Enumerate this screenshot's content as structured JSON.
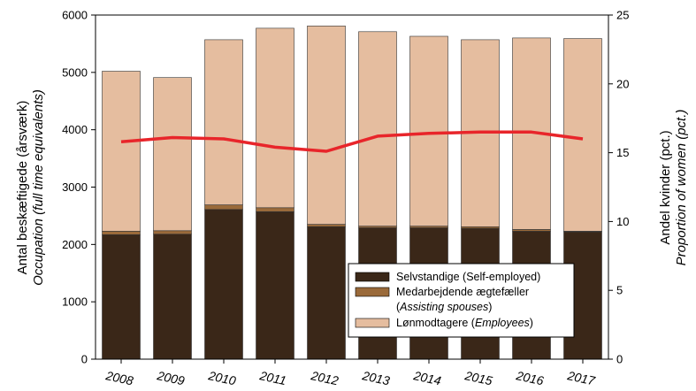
{
  "chart_data": {
    "type": "bar",
    "stacked": true,
    "categories": [
      "2008",
      "2009",
      "2010",
      "2011",
      "2012",
      "2013",
      "2014",
      "2015",
      "2016",
      "2017"
    ],
    "series": [
      {
        "name": "Selvstandige (Self-employed)",
        "color": "#3a2718",
        "values": [
          2170,
          2180,
          2610,
          2570,
          2310,
          2290,
          2290,
          2280,
          2230,
          2220
        ]
      },
      {
        "name": "Medarbejdende ægtefæller (Assisting spouses)",
        "color": "#9a6a3a",
        "values": [
          60,
          60,
          80,
          70,
          40,
          30,
          30,
          30,
          30,
          10
        ]
      },
      {
        "name": "Lønmodtagere (Employees)",
        "color": "#e5bd9f",
        "values": [
          2790,
          2670,
          2880,
          3130,
          3460,
          3390,
          3310,
          3260,
          3340,
          3360
        ]
      }
    ],
    "line_series": {
      "name": "Andel kvinder",
      "color": "#e8252a",
      "axis": "right",
      "values": [
        15.8,
        16.1,
        16.0,
        15.4,
        15.1,
        16.2,
        16.4,
        16.5,
        16.5,
        16.0
      ]
    },
    "ylabel": "Antal beskæftigede (årsværk)",
    "ylabel_en": "Occupation (full time equivalents)",
    "ylim": [
      0,
      6000
    ],
    "yticks": [
      "0",
      "1000",
      "2000",
      "3000",
      "4000",
      "5000",
      "6000"
    ],
    "y2label": "Andel kvinder (pct.)",
    "y2label_en": "Proportion of women (pct.)",
    "y2lim": [
      0,
      25
    ],
    "y2ticks": [
      "0",
      "5",
      "10",
      "15",
      "20",
      "25"
    ],
    "legend_position": "bottom-right",
    "legend": {
      "item1": "Selvstandige (Self-employed)",
      "item2_line1": "Medarbejdende ægtefæller",
      "item2_line2_prefix": "(",
      "item2_line2_it": "Assisting spouses",
      "item2_line2_suffix": ")",
      "item3_prefix": "Lønmodtagere (",
      "item3_it": "Employees",
      "item3_suffix": ")"
    },
    "grid": false
  }
}
